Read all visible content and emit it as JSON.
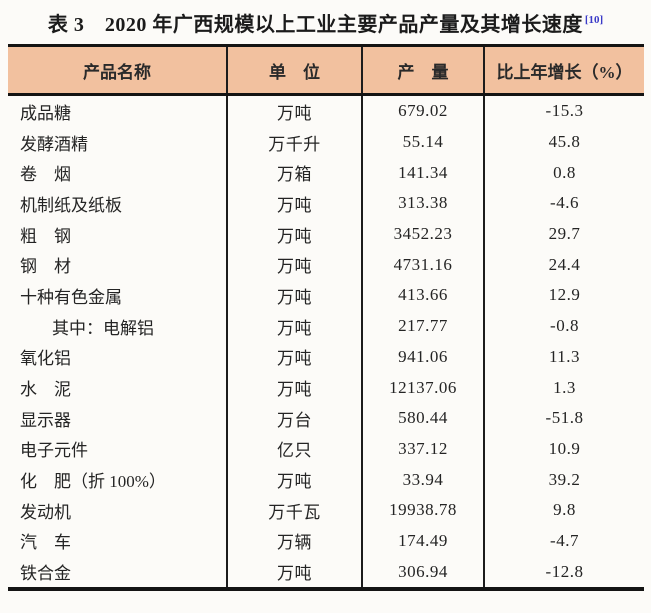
{
  "title": {
    "text": "表 3　2020 年广西规模以上工业主要产品产量及其增长速度",
    "footnote_ref": "[10]"
  },
  "colors": {
    "header_bg": "#f2c19f",
    "border": "#141414",
    "footnote_blue": "#3a3ac8",
    "text": "#242424",
    "page_bg": "#fcfbf8"
  },
  "table": {
    "columns": [
      "产品名称",
      "单　位",
      "产　量",
      "比上年增长（%）"
    ],
    "rows": [
      {
        "product": "成品糖",
        "unit": "万吨",
        "output": "679.02",
        "growth": "-15.3",
        "indent": false
      },
      {
        "product": "发酵酒精",
        "unit": "万千升",
        "output": "55.14",
        "growth": "45.8",
        "indent": false
      },
      {
        "product": "卷　烟",
        "unit": "万箱",
        "output": "141.34",
        "growth": "0.8",
        "indent": false
      },
      {
        "product": "机制纸及纸板",
        "unit": "万吨",
        "output": "313.38",
        "growth": "-4.6",
        "indent": false
      },
      {
        "product": "粗　钢",
        "unit": "万吨",
        "output": "3452.23",
        "growth": "29.7",
        "indent": false
      },
      {
        "product": "钢　材",
        "unit": "万吨",
        "output": "4731.16",
        "growth": "24.4",
        "indent": false
      },
      {
        "product": "十种有色金属",
        "unit": "万吨",
        "output": "413.66",
        "growth": "12.9",
        "indent": false
      },
      {
        "product": "其中：电解铝",
        "unit": "万吨",
        "output": "217.77",
        "growth": "-0.8",
        "indent": true
      },
      {
        "product": "氧化铝",
        "unit": "万吨",
        "output": "941.06",
        "growth": "11.3",
        "indent": false
      },
      {
        "product": "水　泥",
        "unit": "万吨",
        "output": "12137.06",
        "growth": "1.3",
        "indent": false
      },
      {
        "product": "显示器",
        "unit": "万台",
        "output": "580.44",
        "growth": "-51.8",
        "indent": false
      },
      {
        "product": "电子元件",
        "unit": "亿只",
        "output": "337.12",
        "growth": "10.9",
        "indent": false
      },
      {
        "product": "化　肥（折 100%）",
        "unit": "万吨",
        "output": "33.94",
        "growth": "39.2",
        "indent": false
      },
      {
        "product": "发动机",
        "unit": "万千瓦",
        "output": "19938.78",
        "growth": "9.8",
        "indent": false
      },
      {
        "product": "汽　车",
        "unit": "万辆",
        "output": "174.49",
        "growth": "-4.7",
        "indent": false
      },
      {
        "product": "铁合金",
        "unit": "万吨",
        "output": "306.94",
        "growth": "-12.8",
        "indent": false
      }
    ]
  },
  "chart_data": {
    "type": "table",
    "title": "表 3　2020 年广西规模以上工业主要产品产量及其增长速度",
    "columns": [
      "产品名称",
      "单位",
      "产量",
      "比上年增长（%）"
    ],
    "rows": [
      [
        "成品糖",
        "万吨",
        679.02,
        -15.3
      ],
      [
        "发酵酒精",
        "万千升",
        55.14,
        45.8
      ],
      [
        "卷烟",
        "万箱",
        141.34,
        0.8
      ],
      [
        "机制纸及纸板",
        "万吨",
        313.38,
        -4.6
      ],
      [
        "粗钢",
        "万吨",
        3452.23,
        29.7
      ],
      [
        "钢材",
        "万吨",
        4731.16,
        24.4
      ],
      [
        "十种有色金属",
        "万吨",
        413.66,
        12.9
      ],
      [
        "其中：电解铝",
        "万吨",
        217.77,
        -0.8
      ],
      [
        "氧化铝",
        "万吨",
        941.06,
        11.3
      ],
      [
        "水泥",
        "万吨",
        12137.06,
        1.3
      ],
      [
        "显示器",
        "万台",
        580.44,
        -51.8
      ],
      [
        "电子元件",
        "亿只",
        337.12,
        10.9
      ],
      [
        "化肥（折100%）",
        "万吨",
        33.94,
        39.2
      ],
      [
        "发动机",
        "万千瓦",
        19938.78,
        9.8
      ],
      [
        "汽车",
        "万辆",
        174.49,
        -4.7
      ],
      [
        "铁合金",
        "万吨",
        306.94,
        -12.8
      ]
    ]
  }
}
